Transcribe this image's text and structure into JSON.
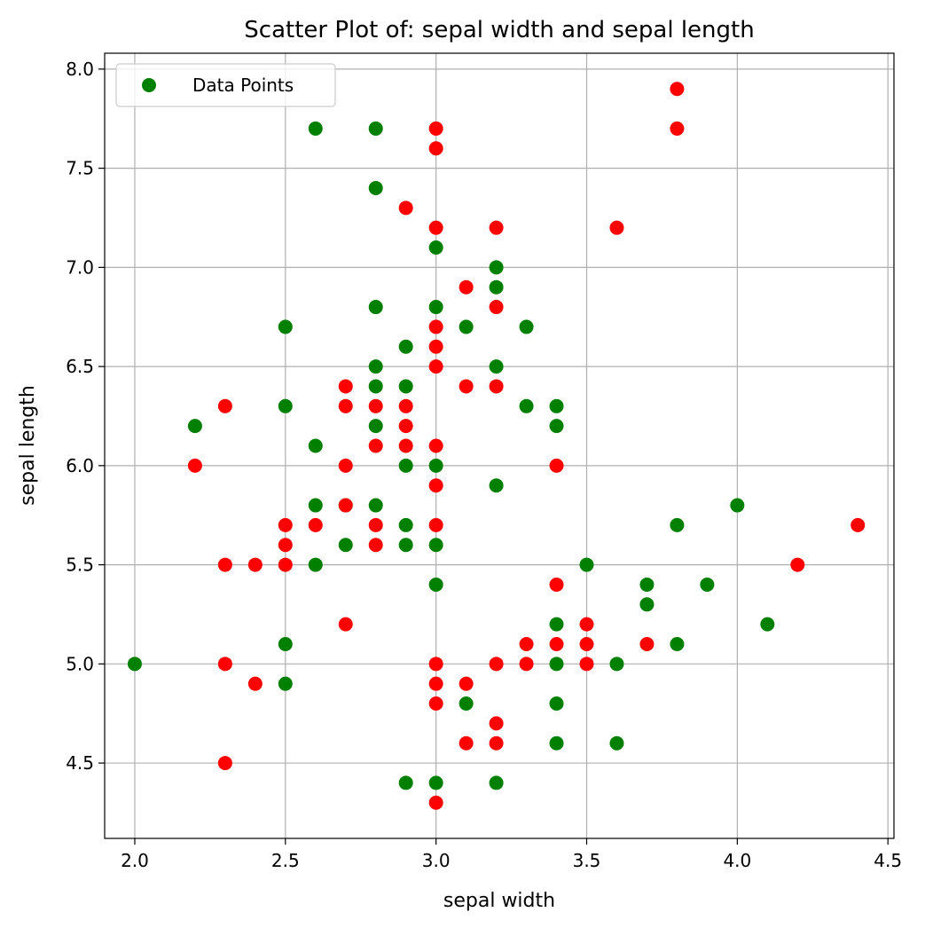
{
  "chart_data": {
    "type": "scatter",
    "title": "Scatter Plot of: sepal width and sepal length",
    "xlabel": "sepal width",
    "ylabel": "sepal length",
    "xlim": [
      1.9,
      4.52
    ],
    "ylim": [
      4.12,
      8.08
    ],
    "xticks": [
      2.0,
      2.5,
      3.0,
      3.5,
      4.0,
      4.5
    ],
    "yticks": [
      4.5,
      5.0,
      5.5,
      6.0,
      6.5,
      7.0,
      7.5,
      8.0
    ],
    "xtick_labels": [
      "2.0",
      "2.5",
      "3.0",
      "3.5",
      "4.0",
      "4.5"
    ],
    "ytick_labels": [
      "4.5",
      "5.0",
      "5.5",
      "6.0",
      "6.5",
      "7.0",
      "7.5",
      "8.0"
    ],
    "grid": true,
    "legend": {
      "position": "top-left",
      "entries": [
        "Data Points"
      ]
    },
    "colors": {
      "green": "#008000",
      "red": "#ff0000",
      "grid": "#b0b0b0"
    },
    "series": [
      {
        "color": "#008000",
        "points": [
          [
            2.0,
            5.0
          ],
          [
            2.2,
            6.2
          ],
          [
            2.5,
            6.7
          ],
          [
            2.5,
            6.3
          ],
          [
            2.5,
            5.1
          ],
          [
            2.5,
            4.9
          ],
          [
            2.6,
            7.7
          ],
          [
            2.6,
            6.1
          ],
          [
            2.6,
            5.8
          ],
          [
            2.6,
            5.5
          ],
          [
            2.7,
            5.8
          ],
          [
            2.7,
            5.6
          ],
          [
            2.8,
            7.7
          ],
          [
            2.8,
            7.4
          ],
          [
            2.8,
            6.8
          ],
          [
            2.8,
            6.5
          ],
          [
            2.8,
            6.4
          ],
          [
            2.8,
            6.2
          ],
          [
            2.8,
            5.8
          ],
          [
            2.9,
            6.6
          ],
          [
            2.9,
            6.4
          ],
          [
            2.9,
            6.0
          ],
          [
            2.9,
            5.7
          ],
          [
            2.9,
            5.6
          ],
          [
            2.9,
            4.4
          ],
          [
            3.0,
            7.1
          ],
          [
            3.0,
            6.8
          ],
          [
            3.0,
            6.0
          ],
          [
            3.0,
            5.6
          ],
          [
            3.0,
            5.4
          ],
          [
            3.0,
            4.4
          ],
          [
            3.1,
            6.7
          ],
          [
            3.1,
            4.8
          ],
          [
            3.2,
            7.0
          ],
          [
            3.2,
            6.9
          ],
          [
            3.2,
            6.5
          ],
          [
            3.2,
            5.9
          ],
          [
            3.2,
            4.4
          ],
          [
            3.3,
            6.7
          ],
          [
            3.3,
            6.3
          ],
          [
            3.4,
            6.3
          ],
          [
            3.4,
            6.2
          ],
          [
            3.4,
            5.2
          ],
          [
            3.4,
            5.0
          ],
          [
            3.4,
            4.8
          ],
          [
            3.4,
            4.6
          ],
          [
            3.5,
            5.5
          ],
          [
            3.6,
            5.0
          ],
          [
            3.6,
            4.6
          ],
          [
            3.7,
            5.4
          ],
          [
            3.7,
            5.3
          ],
          [
            3.8,
            5.7
          ],
          [
            3.8,
            5.1
          ],
          [
            3.9,
            5.4
          ],
          [
            4.0,
            5.8
          ],
          [
            4.1,
            5.2
          ]
        ]
      },
      {
        "color": "#ff0000",
        "points": [
          [
            2.2,
            6.0
          ],
          [
            2.3,
            6.3
          ],
          [
            2.3,
            5.5
          ],
          [
            2.3,
            5.0
          ],
          [
            2.3,
            4.5
          ],
          [
            2.4,
            5.5
          ],
          [
            2.4,
            4.9
          ],
          [
            2.5,
            5.7
          ],
          [
            2.5,
            5.6
          ],
          [
            2.5,
            5.5
          ],
          [
            2.6,
            5.7
          ],
          [
            2.7,
            6.4
          ],
          [
            2.7,
            6.3
          ],
          [
            2.7,
            6.0
          ],
          [
            2.7,
            5.8
          ],
          [
            2.7,
            5.2
          ],
          [
            2.8,
            6.3
          ],
          [
            2.8,
            6.1
          ],
          [
            2.8,
            5.7
          ],
          [
            2.8,
            5.6
          ],
          [
            2.9,
            7.3
          ],
          [
            2.9,
            6.3
          ],
          [
            2.9,
            6.2
          ],
          [
            2.9,
            6.1
          ],
          [
            3.0,
            7.7
          ],
          [
            3.0,
            7.6
          ],
          [
            3.0,
            7.2
          ],
          [
            3.0,
            6.7
          ],
          [
            3.0,
            6.6
          ],
          [
            3.0,
            6.5
          ],
          [
            3.0,
            6.1
          ],
          [
            3.0,
            5.9
          ],
          [
            3.0,
            5.7
          ],
          [
            3.0,
            5.0
          ],
          [
            3.0,
            4.9
          ],
          [
            3.0,
            4.8
          ],
          [
            3.0,
            4.3
          ],
          [
            3.1,
            6.9
          ],
          [
            3.1,
            6.4
          ],
          [
            3.1,
            4.9
          ],
          [
            3.1,
            4.6
          ],
          [
            3.2,
            7.2
          ],
          [
            3.2,
            6.8
          ],
          [
            3.2,
            6.4
          ],
          [
            3.2,
            5.0
          ],
          [
            3.2,
            4.7
          ],
          [
            3.2,
            4.6
          ],
          [
            3.3,
            5.1
          ],
          [
            3.3,
            5.0
          ],
          [
            3.4,
            6.0
          ],
          [
            3.4,
            5.4
          ],
          [
            3.4,
            5.1
          ],
          [
            3.5,
            5.2
          ],
          [
            3.5,
            5.1
          ],
          [
            3.5,
            5.0
          ],
          [
            3.6,
            7.2
          ],
          [
            3.7,
            5.1
          ],
          [
            3.8,
            7.9
          ],
          [
            3.8,
            7.7
          ],
          [
            4.2,
            5.5
          ],
          [
            4.4,
            5.7
          ]
        ]
      }
    ]
  }
}
